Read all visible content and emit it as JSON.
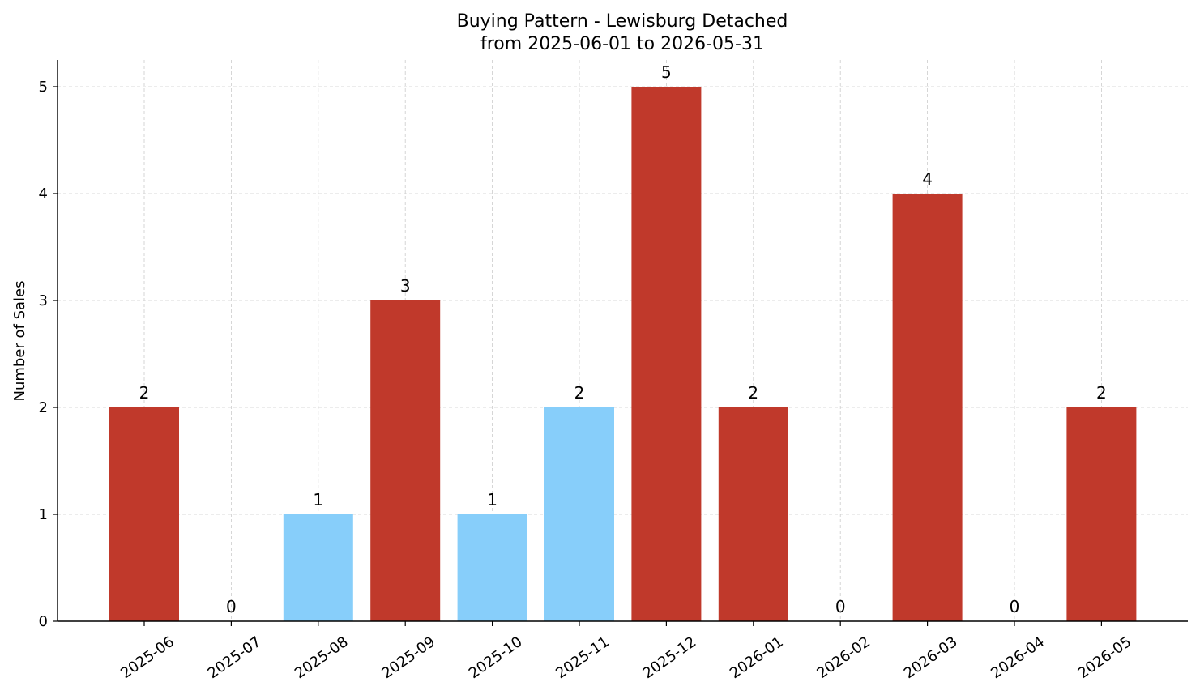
{
  "chart_data": {
    "type": "bar",
    "title": "Buying Pattern - Lewisburg Detached",
    "subtitle": "from 2025-06-01 to 2026-05-31",
    "xlabel": "",
    "ylabel": "Number of Sales",
    "categories": [
      "2025-06",
      "2025-07",
      "2025-08",
      "2025-09",
      "2025-10",
      "2025-11",
      "2025-12",
      "2026-01",
      "2026-02",
      "2026-03",
      "2026-04",
      "2026-05"
    ],
    "values": [
      2,
      0,
      1,
      3,
      1,
      2,
      5,
      2,
      0,
      4,
      0,
      2
    ],
    "bar_colors": [
      "#c0392b",
      "#c0392b",
      "#87cefa",
      "#c0392b",
      "#87cefa",
      "#87cefa",
      "#c0392b",
      "#c0392b",
      "#c0392b",
      "#c0392b",
      "#c0392b",
      "#c0392b"
    ],
    "ylim": [
      0,
      5.25
    ],
    "yticks": [
      0,
      1,
      2,
      3,
      4,
      5
    ],
    "grid": true,
    "legend": "none"
  }
}
